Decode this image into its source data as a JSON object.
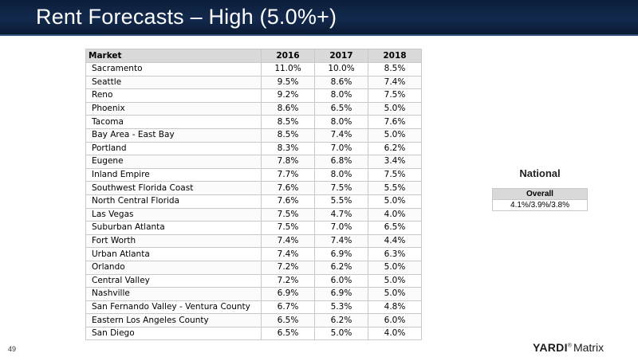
{
  "slide": {
    "title": "Rent Forecasts – High (5.0%+)",
    "page_number": "49"
  },
  "market_table": {
    "headers": [
      "Market",
      "2016",
      "2017",
      "2018"
    ],
    "rows": [
      [
        "Sacramento",
        "11.0%",
        "10.0%",
        "8.5%"
      ],
      [
        "Seattle",
        "9.5%",
        "8.6%",
        "7.4%"
      ],
      [
        "Reno",
        "9.2%",
        "8.0%",
        "7.5%"
      ],
      [
        "Phoenix",
        "8.6%",
        "6.5%",
        "5.0%"
      ],
      [
        "Tacoma",
        "8.5%",
        "8.0%",
        "7.6%"
      ],
      [
        "Bay Area - East Bay",
        "8.5%",
        "7.4%",
        "5.0%"
      ],
      [
        "Portland",
        "8.3%",
        "7.0%",
        "6.2%"
      ],
      [
        "Eugene",
        "7.8%",
        "6.8%",
        "3.4%"
      ],
      [
        "Inland Empire",
        "7.7%",
        "8.0%",
        "7.5%"
      ],
      [
        "Southwest Florida Coast",
        "7.6%",
        "7.5%",
        "5.5%"
      ],
      [
        "North Central Florida",
        "7.6%",
        "5.5%",
        "5.0%"
      ],
      [
        "Las Vegas",
        "7.5%",
        "4.7%",
        "4.0%"
      ],
      [
        "Suburban Atlanta",
        "7.5%",
        "7.0%",
        "6.5%"
      ],
      [
        "Fort Worth",
        "7.4%",
        "7.4%",
        "4.4%"
      ],
      [
        "Urban Atlanta",
        "7.4%",
        "6.9%",
        "6.3%"
      ],
      [
        "Orlando",
        "7.2%",
        "6.2%",
        "5.0%"
      ],
      [
        "Central Valley",
        "7.2%",
        "6.0%",
        "5.0%"
      ],
      [
        "Nashville",
        "6.9%",
        "6.9%",
        "5.0%"
      ],
      [
        "San Fernando Valley - Ventura County",
        "6.7%",
        "5.3%",
        "4.8%"
      ],
      [
        "Eastern Los Angeles County",
        "6.5%",
        "6.2%",
        "6.0%"
      ],
      [
        "San Diego",
        "6.5%",
        "5.0%",
        "4.0%"
      ]
    ]
  },
  "national": {
    "title": "National",
    "header": "Overall",
    "value": "4.1%/3.9%/3.8%"
  },
  "logo": {
    "brand": "YARDI",
    "mark": "®",
    "product": "Matrix"
  },
  "colors": {
    "title_bar": "#0c1e3a",
    "table_header": "#d9d9d9",
    "grid_line": "#c9c9c9"
  }
}
